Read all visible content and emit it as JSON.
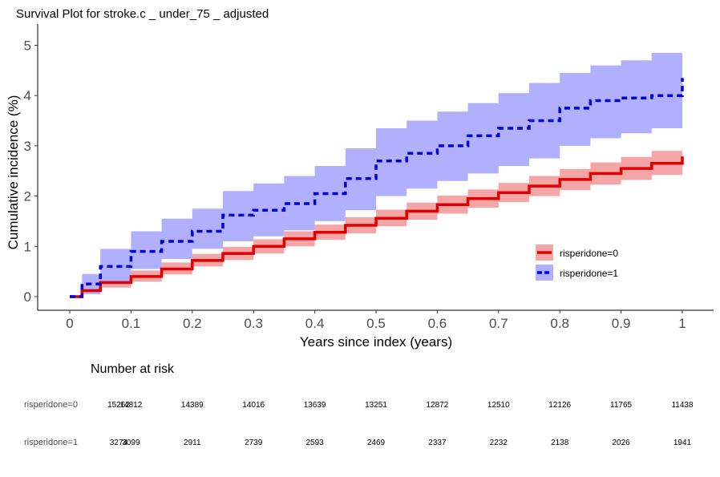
{
  "chart_data": {
    "type": "line",
    "title": "Survival Plot for stroke.c _ under_75 _ adjusted",
    "xlabel": "Years since index (years)",
    "ylabel": "Cumulative incidence (%)",
    "xlim": [
      0,
      1
    ],
    "ylim": [
      0,
      5.2
    ],
    "x_ticks": [
      "0",
      "0.1",
      "0.2",
      "0.3",
      "0.4",
      "0.5",
      "0.6",
      "0.7",
      "0.8",
      "0.9",
      "1"
    ],
    "y_ticks": [
      "0",
      "1",
      "2",
      "3",
      "4",
      "5"
    ],
    "grid": false,
    "legend_position": "bottom-right",
    "x": [
      0,
      0.02,
      0.05,
      0.1,
      0.15,
      0.2,
      0.25,
      0.3,
      0.35,
      0.4,
      0.45,
      0.5,
      0.55,
      0.6,
      0.65,
      0.7,
      0.75,
      0.8,
      0.85,
      0.9,
      0.95,
      1.0
    ],
    "series": [
      {
        "name": "risperidone=0",
        "color": "#e00000",
        "band_color": "#f4a6a6",
        "line_style": "solid",
        "values": [
          0,
          0.12,
          0.28,
          0.4,
          0.55,
          0.72,
          0.86,
          1.0,
          1.15,
          1.28,
          1.42,
          1.56,
          1.7,
          1.83,
          1.95,
          2.07,
          2.2,
          2.33,
          2.45,
          2.55,
          2.65,
          2.79
        ],
        "lower": [
          0,
          0.05,
          0.18,
          0.3,
          0.44,
          0.6,
          0.73,
          0.86,
          1.0,
          1.13,
          1.26,
          1.4,
          1.53,
          1.65,
          1.77,
          1.88,
          2.0,
          2.12,
          2.23,
          2.32,
          2.42,
          2.55
        ],
        "upper": [
          0,
          0.2,
          0.38,
          0.52,
          0.68,
          0.85,
          0.99,
          1.14,
          1.3,
          1.43,
          1.58,
          1.73,
          1.87,
          2.01,
          2.13,
          2.26,
          2.4,
          2.54,
          2.67,
          2.78,
          2.9,
          3.05
        ]
      },
      {
        "name": "risperidone=1",
        "color": "#0000dd",
        "band_color": "#b0b0ff",
        "line_style": "dashed",
        "values": [
          0,
          0.25,
          0.6,
          0.9,
          1.1,
          1.3,
          1.62,
          1.72,
          1.85,
          2.05,
          2.35,
          2.7,
          2.85,
          3.0,
          3.2,
          3.35,
          3.5,
          3.75,
          3.9,
          3.95,
          4.0,
          4.35
        ],
        "lower": [
          0,
          0.05,
          0.25,
          0.55,
          0.75,
          0.95,
          1.1,
          1.2,
          1.32,
          1.5,
          1.72,
          2.0,
          2.15,
          2.3,
          2.45,
          2.6,
          2.75,
          3.0,
          3.15,
          3.25,
          3.35,
          3.6
        ],
        "upper": [
          0,
          0.45,
          0.95,
          1.3,
          1.55,
          1.75,
          2.1,
          2.25,
          2.4,
          2.6,
          2.95,
          3.35,
          3.5,
          3.68,
          3.85,
          4.05,
          4.25,
          4.45,
          4.6,
          4.7,
          4.85,
          5.15
        ]
      }
    ]
  },
  "risk_table": {
    "title": "Number at risk",
    "rows": [
      {
        "label": "risperidone=0",
        "values": [
          "15262",
          "14812",
          "14389",
          "14016",
          "13639",
          "13251",
          "12872",
          "12510",
          "12126",
          "11765",
          "11438"
        ]
      },
      {
        "label": "risperidone=1",
        "values": [
          "3274",
          "3099",
          "2911",
          "2739",
          "2593",
          "2469",
          "2337",
          "2232",
          "2138",
          "2026",
          "1941"
        ]
      }
    ]
  }
}
